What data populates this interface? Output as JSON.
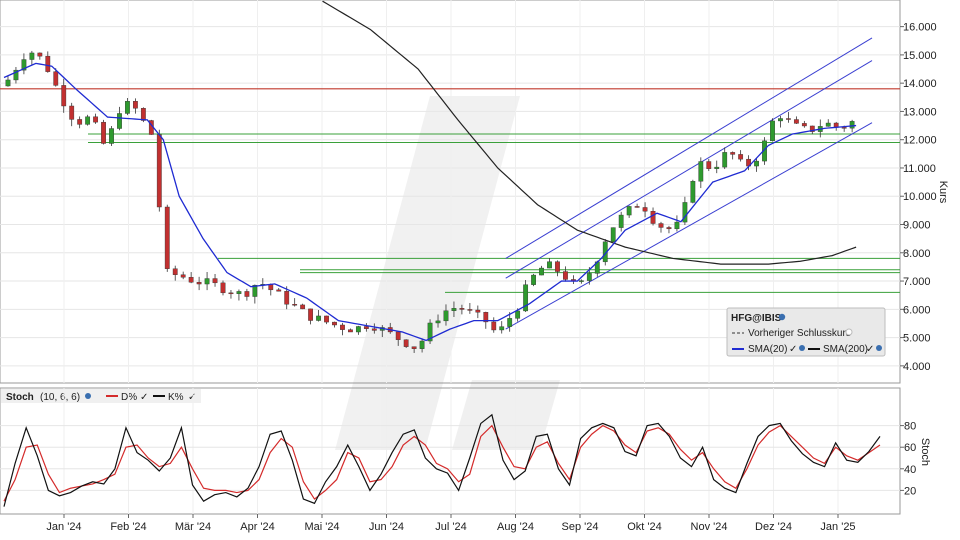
{
  "chart_data": [
    {
      "type": "candlestick",
      "symbol": "HFG@IBIS",
      "y_axis_label": "Kurs",
      "y_ticks": [
        "4.000",
        "5.000",
        "6.000",
        "7.000",
        "8.000",
        "9.000",
        "10.000",
        "11.000",
        "12.000",
        "13.000",
        "14.000",
        "15.000",
        "16.000"
      ],
      "ylim": [
        3.5,
        16.8
      ],
      "x_labels": [
        "Jan '24",
        "Feb '24",
        "Mär '24",
        "Apr '24",
        "Mai '24",
        "Jun '24",
        "Jul '24",
        "Aug '24",
        "Sep '24",
        "Okt '24",
        "Nov '24",
        "Dez '24",
        "Jan '25"
      ],
      "legend": {
        "title": "HFG@IBIS",
        "items": [
          "Vorheriger Schlusskurs",
          "SMA(20)",
          "SMA(200)"
        ]
      },
      "close_path": [
        [
          0,
          13.9
        ],
        [
          3,
          15.2
        ],
        [
          5,
          14.8
        ],
        [
          7,
          13.6
        ],
        [
          9,
          12.6
        ],
        [
          11,
          12.8
        ],
        [
          12,
          12.1
        ],
        [
          13,
          11.6
        ],
        [
          14,
          13.0
        ],
        [
          16,
          13.3
        ],
        [
          18,
          12.4
        ],
        [
          19,
          12.0
        ],
        [
          20,
          7.3
        ],
        [
          22,
          7.2
        ],
        [
          24,
          7.0
        ],
        [
          26,
          6.9
        ],
        [
          28,
          6.7
        ],
        [
          30,
          6.5
        ],
        [
          32,
          7.0
        ],
        [
          34,
          6.6
        ],
        [
          36,
          6.2
        ],
        [
          38,
          5.8
        ],
        [
          40,
          5.6
        ],
        [
          42,
          5.4
        ],
        [
          44,
          5.3
        ],
        [
          46,
          5.5
        ],
        [
          48,
          5.2
        ],
        [
          50,
          4.9
        ],
        [
          52,
          4.6
        ],
        [
          53,
          5.2
        ],
        [
          55,
          5.9
        ],
        [
          57,
          6.1
        ],
        [
          59,
          5.8
        ],
        [
          61,
          5.5
        ],
        [
          62,
          5.0
        ],
        [
          63,
          5.6
        ],
        [
          64,
          5.8
        ],
        [
          66,
          7.0
        ],
        [
          68,
          7.6
        ],
        [
          70,
          7.3
        ],
        [
          72,
          6.7
        ],
        [
          74,
          7.5
        ],
        [
          76,
          8.8
        ],
        [
          78,
          9.4
        ],
        [
          80,
          9.8
        ],
        [
          82,
          9.0
        ],
        [
          84,
          8.8
        ],
        [
          85,
          9.1
        ],
        [
          87,
          11.2
        ],
        [
          89,
          11.0
        ],
        [
          91,
          11.6
        ],
        [
          93,
          11.0
        ],
        [
          95,
          11.5
        ],
        [
          97,
          13.0
        ],
        [
          99,
          12.5
        ],
        [
          101,
          12.3
        ],
        [
          103,
          12.6
        ],
        [
          105,
          12.4
        ],
        [
          107,
          12.7
        ]
      ],
      "sma20_path": [
        [
          0,
          14.2
        ],
        [
          4,
          14.7
        ],
        [
          6,
          14.6
        ],
        [
          9,
          13.8
        ],
        [
          13,
          12.8
        ],
        [
          18,
          12.7
        ],
        [
          20,
          12.0
        ],
        [
          22,
          10.0
        ],
        [
          25,
          8.5
        ],
        [
          28,
          7.3
        ],
        [
          31,
          6.8
        ],
        [
          34,
          6.9
        ],
        [
          38,
          6.4
        ],
        [
          42,
          5.6
        ],
        [
          46,
          5.4
        ],
        [
          50,
          5.2
        ],
        [
          53,
          4.9
        ],
        [
          56,
          5.3
        ],
        [
          59,
          5.6
        ],
        [
          62,
          5.6
        ],
        [
          66,
          6.2
        ],
        [
          70,
          7.0
        ],
        [
          72,
          7.0
        ],
        [
          75,
          7.8
        ],
        [
          78,
          8.8
        ],
        [
          82,
          9.4
        ],
        [
          85,
          9.1
        ],
        [
          89,
          10.5
        ],
        [
          93,
          10.9
        ],
        [
          96,
          11.8
        ],
        [
          99,
          12.2
        ],
        [
          103,
          12.4
        ],
        [
          107,
          12.5
        ]
      ],
      "sma200_path": [
        [
          40,
          16.9
        ],
        [
          46,
          15.9
        ],
        [
          52,
          14.5
        ],
        [
          57,
          12.7
        ],
        [
          62,
          11.0
        ],
        [
          67,
          9.7
        ],
        [
          72,
          8.8
        ],
        [
          78,
          8.2
        ],
        [
          84,
          7.8
        ],
        [
          90,
          7.6
        ],
        [
          96,
          7.6
        ],
        [
          100,
          7.7
        ],
        [
          104,
          7.9
        ],
        [
          107,
          8.2
        ]
      ],
      "resistance_line": 13.8,
      "horizontal_support_levels": [
        12.2,
        11.9,
        7.8,
        7.4,
        7.3,
        6.6
      ],
      "trend_channel": [
        {
          "from": [
            63,
            7.8
          ],
          "to": [
            109,
            15.6
          ]
        },
        {
          "from": [
            63,
            7.1
          ],
          "to": [
            109,
            14.8
          ]
        },
        {
          "from": [
            63,
            5.3
          ],
          "to": [
            109,
            12.6
          ]
        }
      ]
    },
    {
      "type": "line",
      "indicator": "Stoch",
      "params": "(10, 6, 6)",
      "y_axis_label": "Stoch",
      "y_ticks": [
        "20",
        "40",
        "60",
        "80"
      ],
      "ylim": [
        0,
        100
      ],
      "series": [
        {
          "name": "D%",
          "color": "#d42b2b",
          "values": [
            10,
            30,
            60,
            62,
            35,
            18,
            22,
            24,
            26,
            30,
            35,
            60,
            62,
            50,
            42,
            45,
            60,
            40,
            22,
            20,
            20,
            18,
            20,
            30,
            55,
            68,
            60,
            28,
            12,
            20,
            30,
            55,
            50,
            28,
            30,
            42,
            62,
            70,
            62,
            45,
            40,
            28,
            35,
            70,
            80,
            60,
            42,
            40,
            60,
            65,
            45,
            30,
            60,
            72,
            80,
            75,
            62,
            55,
            75,
            78,
            72,
            58,
            48,
            55,
            40,
            28,
            22,
            40,
            62,
            74,
            80,
            70,
            60,
            50,
            45,
            60,
            52,
            48,
            55,
            62
          ]
        },
        {
          "name": "K%",
          "color": "#111111",
          "values": [
            5,
            45,
            78,
            52,
            20,
            15,
            18,
            24,
            28,
            26,
            40,
            78,
            55,
            48,
            38,
            50,
            78,
            25,
            10,
            16,
            18,
            14,
            22,
            42,
            72,
            75,
            48,
            12,
            8,
            28,
            42,
            62,
            42,
            20,
            35,
            55,
            72,
            76,
            50,
            40,
            36,
            20,
            50,
            82,
            90,
            48,
            30,
            38,
            70,
            72,
            40,
            25,
            68,
            78,
            82,
            78,
            56,
            52,
            80,
            82,
            70,
            50,
            42,
            60,
            30,
            22,
            18,
            45,
            70,
            80,
            82,
            66,
            54,
            46,
            42,
            64,
            48,
            46,
            56,
            70
          ]
        }
      ]
    }
  ]
}
